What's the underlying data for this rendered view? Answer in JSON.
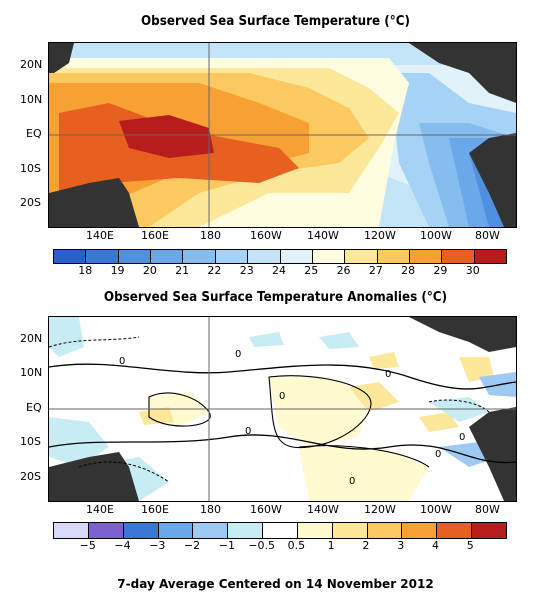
{
  "sst_panel": {
    "title": "Observed Sea Surface Temperature (°C)",
    "lat_labels": [
      "20N",
      "10N",
      "EQ",
      "10S",
      "20S"
    ],
    "lon_labels": [
      "140E",
      "160E",
      "180",
      "160W",
      "140W",
      "120W",
      "100W",
      "80W"
    ],
    "colorbar_labels": [
      "18",
      "19",
      "20",
      "21",
      "22",
      "23",
      "24",
      "25",
      "26",
      "27",
      "28",
      "29",
      "30"
    ],
    "colorbar_colors": [
      "#2660c8",
      "#3a78d8",
      "#5090e0",
      "#6aa8ea",
      "#86bdef",
      "#a6d2f5",
      "#c4e4f8",
      "#e2f2fb",
      "#fffde0",
      "#fde89a",
      "#fcc860",
      "#f7a033",
      "#e8601f",
      "#b81c1c"
    ]
  },
  "anomaly_panel": {
    "title": "Observed Sea Surface Temperature Anomalies (°C)",
    "lat_labels": [
      "20N",
      "10N",
      "EQ",
      "10S",
      "20S"
    ],
    "lon_labels": [
      "140E",
      "160E",
      "180",
      "160W",
      "140W",
      "120W",
      "100W",
      "80W"
    ],
    "colorbar_labels": [
      "−5",
      "−4",
      "−3",
      "−2",
      "−1",
      "−0.5",
      "0.5",
      "1",
      "2",
      "3",
      "4",
      "5"
    ],
    "colorbar_colors": [
      "#d8d8f8",
      "#7a60d0",
      "#3a78d8",
      "#6aa8ea",
      "#9ccaf2",
      "#c8ecf4",
      "#ffffff",
      "#fffad0",
      "#fde89a",
      "#fcc860",
      "#f7a033",
      "#e8601f",
      "#b81c1c"
    ],
    "contour_labels": [
      "0",
      "0",
      "0",
      "0",
      "0",
      "0",
      "0",
      "0"
    ]
  },
  "footer": "7-day Average Centered on 14 November 2012"
}
